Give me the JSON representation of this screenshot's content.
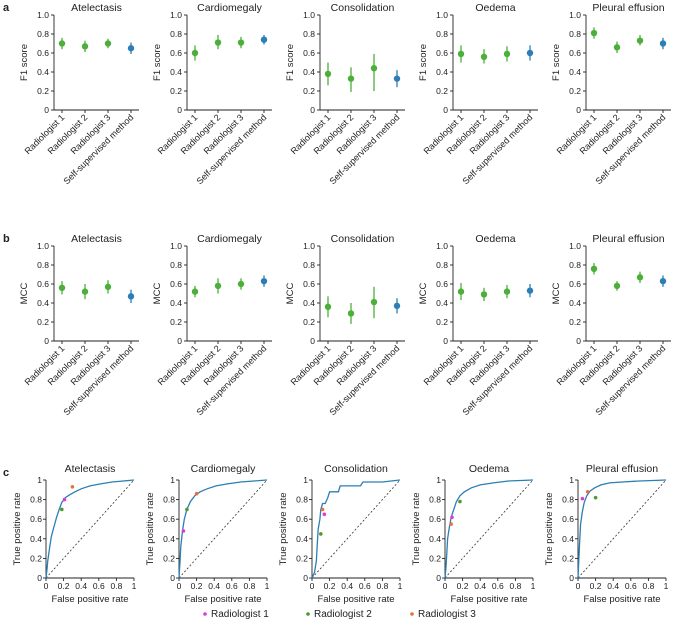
{
  "colors": {
    "radiologist": "#4caf3a",
    "model": "#2d7eb6",
    "roc": "#2a7fb4",
    "r1": "#e03bd0",
    "r2": "#4d9a2a",
    "r3": "#e8703a"
  },
  "panels": [
    {
      "label": "a",
      "ylabel": "F1 score"
    },
    {
      "label": "b",
      "ylabel": "MCC"
    },
    {
      "label": "c",
      "ylabel": "True positive rate",
      "xlabel": "False positive rate"
    }
  ],
  "chart_data": [
    {
      "type": "scatter",
      "panel": "a",
      "metric": "F1 score",
      "ylim": [
        0,
        1
      ],
      "yticks": [
        "0",
        "0.2",
        "0.4",
        "0.6",
        "0.8",
        "1.0"
      ],
      "categories": [
        "Radiologist 1",
        "Radiologist 2",
        "Radiologist 3",
        "Self-supervised method"
      ],
      "subplots": [
        {
          "title": "Atelectasis",
          "values": [
            0.7,
            0.67,
            0.7,
            0.65
          ],
          "lower": [
            0.64,
            0.61,
            0.65,
            0.59
          ],
          "upper": [
            0.76,
            0.73,
            0.75,
            0.71
          ]
        },
        {
          "title": "Cardiomegaly",
          "values": [
            0.6,
            0.71,
            0.71,
            0.74
          ],
          "lower": [
            0.52,
            0.64,
            0.65,
            0.69
          ],
          "upper": [
            0.68,
            0.79,
            0.77,
            0.79
          ]
        },
        {
          "title": "Consolidation",
          "values": [
            0.38,
            0.33,
            0.44,
            0.33
          ],
          "lower": [
            0.26,
            0.19,
            0.2,
            0.24
          ],
          "upper": [
            0.5,
            0.45,
            0.59,
            0.42
          ]
        },
        {
          "title": "Oedema",
          "values": [
            0.59,
            0.56,
            0.59,
            0.6
          ],
          "lower": [
            0.5,
            0.49,
            0.51,
            0.52
          ],
          "upper": [
            0.68,
            0.64,
            0.67,
            0.68
          ]
        },
        {
          "title": "Pleural effusion",
          "values": [
            0.81,
            0.66,
            0.73,
            0.7
          ],
          "lower": [
            0.75,
            0.6,
            0.68,
            0.64
          ],
          "upper": [
            0.87,
            0.72,
            0.79,
            0.76
          ]
        }
      ]
    },
    {
      "type": "scatter",
      "panel": "b",
      "metric": "MCC",
      "ylim": [
        0,
        1
      ],
      "yticks": [
        "0",
        "0.2",
        "0.4",
        "0.6",
        "0.8",
        "1.0"
      ],
      "categories": [
        "Radiologist 1",
        "Radiologist 2",
        "Radiologist 3",
        "Self-supervised method"
      ],
      "subplots": [
        {
          "title": "Atelectasis",
          "values": [
            0.56,
            0.52,
            0.57,
            0.47
          ],
          "lower": [
            0.49,
            0.44,
            0.5,
            0.4
          ],
          "upper": [
            0.63,
            0.6,
            0.64,
            0.54
          ]
        },
        {
          "title": "Cardiomegaly",
          "values": [
            0.52,
            0.58,
            0.6,
            0.63
          ],
          "lower": [
            0.46,
            0.5,
            0.54,
            0.57
          ],
          "upper": [
            0.58,
            0.66,
            0.66,
            0.69
          ]
        },
        {
          "title": "Consolidation",
          "values": [
            0.36,
            0.29,
            0.41,
            0.37
          ],
          "lower": [
            0.25,
            0.18,
            0.24,
            0.29
          ],
          "upper": [
            0.47,
            0.4,
            0.57,
            0.45
          ]
        },
        {
          "title": "Oedema",
          "values": [
            0.52,
            0.49,
            0.52,
            0.53
          ],
          "lower": [
            0.43,
            0.42,
            0.45,
            0.46
          ],
          "upper": [
            0.61,
            0.56,
            0.59,
            0.6
          ]
        },
        {
          "title": "Pleural effusion",
          "values": [
            0.76,
            0.58,
            0.67,
            0.63
          ],
          "lower": [
            0.7,
            0.53,
            0.61,
            0.57
          ],
          "upper": [
            0.82,
            0.63,
            0.73,
            0.69
          ]
        }
      ]
    },
    {
      "type": "line",
      "panel": "c",
      "xlabel": "False positive rate",
      "ylabel": "True positive rate",
      "xlim": [
        0,
        1
      ],
      "ylim": [
        0,
        1
      ],
      "ticks": [
        "0",
        "0.2",
        "0.4",
        "0.6",
        "0.8",
        "1"
      ],
      "legend": [
        "Radiologist 1",
        "Radiologist 2",
        "Radiologist 3"
      ],
      "subplots": [
        {
          "title": "Atelectasis",
          "roc": [
            [
              0,
              0
            ],
            [
              0.01,
              0.08
            ],
            [
              0.02,
              0.18
            ],
            [
              0.04,
              0.3
            ],
            [
              0.06,
              0.42
            ],
            [
              0.09,
              0.52
            ],
            [
              0.12,
              0.62
            ],
            [
              0.15,
              0.7
            ],
            [
              0.18,
              0.77
            ],
            [
              0.22,
              0.82
            ],
            [
              0.27,
              0.85
            ],
            [
              0.33,
              0.88
            ],
            [
              0.4,
              0.91
            ],
            [
              0.5,
              0.94
            ],
            [
              0.62,
              0.96
            ],
            [
              0.75,
              0.98
            ],
            [
              0.88,
              0.99
            ],
            [
              1,
              1
            ]
          ],
          "radiologists": [
            [
              0.21,
              0.8
            ],
            [
              0.18,
              0.7
            ],
            [
              0.3,
              0.93
            ]
          ]
        },
        {
          "title": "Cardiomegaly",
          "roc": [
            [
              0,
              0
            ],
            [
              0.01,
              0.15
            ],
            [
              0.02,
              0.32
            ],
            [
              0.04,
              0.48
            ],
            [
              0.06,
              0.6
            ],
            [
              0.09,
              0.7
            ],
            [
              0.13,
              0.78
            ],
            [
              0.18,
              0.84
            ],
            [
              0.24,
              0.88
            ],
            [
              0.32,
              0.91
            ],
            [
              0.42,
              0.94
            ],
            [
              0.55,
              0.96
            ],
            [
              0.7,
              0.98
            ],
            [
              0.85,
              0.99
            ],
            [
              1,
              1
            ]
          ],
          "radiologists": [
            [
              0.05,
              0.48
            ],
            [
              0.09,
              0.7
            ],
            [
              0.2,
              0.86
            ]
          ]
        },
        {
          "title": "Consolidation",
          "roc": [
            [
              0,
              0
            ],
            [
              0.03,
              0.06
            ],
            [
              0.05,
              0.18
            ],
            [
              0.06,
              0.35
            ],
            [
              0.07,
              0.5
            ],
            [
              0.09,
              0.6
            ],
            [
              0.1,
              0.7
            ],
            [
              0.12,
              0.76
            ],
            [
              0.15,
              0.76
            ],
            [
              0.18,
              0.82
            ],
            [
              0.2,
              0.88
            ],
            [
              0.3,
              0.88
            ],
            [
              0.32,
              0.94
            ],
            [
              0.55,
              0.94
            ],
            [
              0.58,
              0.98
            ],
            [
              0.8,
              0.98
            ],
            [
              1,
              1
            ]
          ],
          "radiologists": [
            [
              0.14,
              0.65
            ],
            [
              0.1,
              0.45
            ],
            [
              0.12,
              0.7
            ]
          ]
        },
        {
          "title": "Oedema",
          "roc": [
            [
              0,
              0
            ],
            [
              0.01,
              0.1
            ],
            [
              0.02,
              0.25
            ],
            [
              0.03,
              0.4
            ],
            [
              0.05,
              0.52
            ],
            [
              0.07,
              0.62
            ],
            [
              0.1,
              0.7
            ],
            [
              0.13,
              0.78
            ],
            [
              0.17,
              0.84
            ],
            [
              0.22,
              0.88
            ],
            [
              0.3,
              0.92
            ],
            [
              0.4,
              0.95
            ],
            [
              0.55,
              0.97
            ],
            [
              0.72,
              0.99
            ],
            [
              1,
              1
            ]
          ],
          "radiologists": [
            [
              0.08,
              0.62
            ],
            [
              0.17,
              0.78
            ],
            [
              0.07,
              0.55
            ]
          ]
        },
        {
          "title": "Pleural effusion",
          "roc": [
            [
              0,
              0
            ],
            [
              0.01,
              0.2
            ],
            [
              0.02,
              0.4
            ],
            [
              0.03,
              0.55
            ],
            [
              0.05,
              0.68
            ],
            [
              0.07,
              0.77
            ],
            [
              0.1,
              0.84
            ],
            [
              0.14,
              0.89
            ],
            [
              0.19,
              0.92
            ],
            [
              0.26,
              0.95
            ],
            [
              0.36,
              0.97
            ],
            [
              0.5,
              0.98
            ],
            [
              0.7,
              0.99
            ],
            [
              1,
              1
            ]
          ],
          "radiologists": [
            [
              0.05,
              0.81
            ],
            [
              0.2,
              0.82
            ],
            [
              0.11,
              0.88
            ]
          ]
        }
      ]
    }
  ]
}
